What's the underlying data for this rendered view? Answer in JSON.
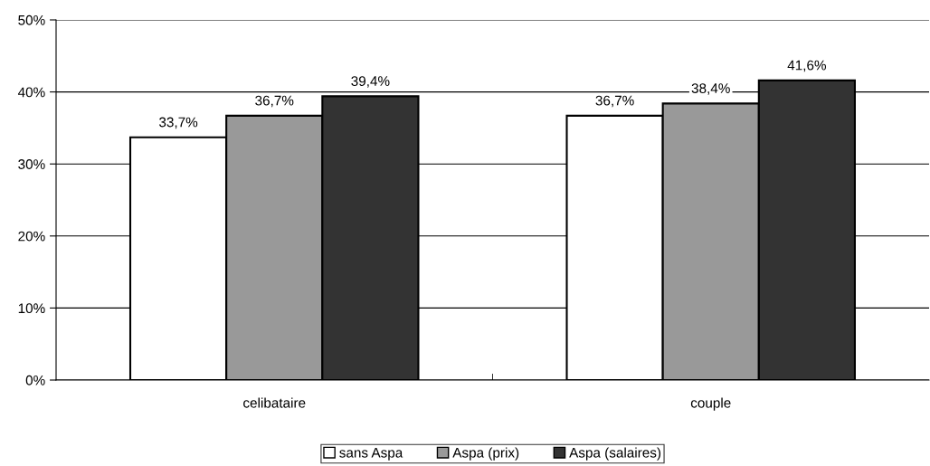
{
  "chart_data": {
    "type": "bar",
    "categories": [
      "celibataire",
      "couple"
    ],
    "series": [
      {
        "name": "sans Aspa",
        "color": "#ffffff",
        "values": [
          33.7,
          36.7
        ],
        "value_labels": [
          "33,7%",
          "36,7%"
        ]
      },
      {
        "name": "Aspa (prix)",
        "color": "#999999",
        "values": [
          36.7,
          38.4
        ],
        "value_labels": [
          "36,7%",
          "38,4%"
        ]
      },
      {
        "name": "Aspa (salaires)",
        "color": "#333333",
        "values": [
          39.4,
          41.6
        ],
        "value_labels": [
          "39,4%",
          "41,6%"
        ]
      }
    ],
    "ylim": [
      0,
      50
    ],
    "yticks": [
      {
        "value": 0,
        "label": "0%"
      },
      {
        "value": 10,
        "label": "10%"
      },
      {
        "value": 20,
        "label": "20%"
      },
      {
        "value": 30,
        "label": "30%"
      },
      {
        "value": 40,
        "label": "40%"
      },
      {
        "value": 50,
        "label": "50%"
      }
    ],
    "grid": "y",
    "legend": "bottom"
  }
}
